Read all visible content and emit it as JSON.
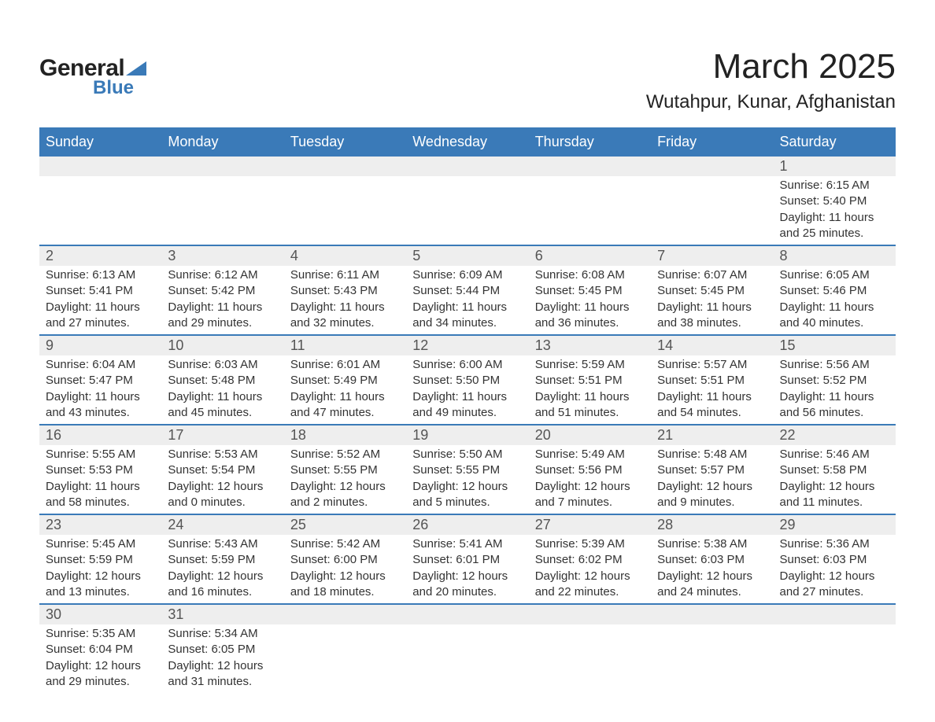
{
  "logo": {
    "text_general": "General",
    "text_blue": "Blue",
    "shape_color": "#3a7ab8"
  },
  "title": {
    "month_year": "March 2025",
    "location": "Wutahpur, Kunar, Afghanistan"
  },
  "colors": {
    "header_bg": "#3a7ab8",
    "header_fg": "#ffffff",
    "daynum_bg": "#eeeeee",
    "row_divider": "#3a7ab8",
    "text": "#333333"
  },
  "typography": {
    "title_fontsize": 44,
    "subtitle_fontsize": 24,
    "header_fontsize": 18,
    "daynum_fontsize": 18,
    "cell_fontsize": 15
  },
  "days_of_week": [
    "Sunday",
    "Monday",
    "Tuesday",
    "Wednesday",
    "Thursday",
    "Friday",
    "Saturday"
  ],
  "weeks": [
    [
      null,
      null,
      null,
      null,
      null,
      null,
      {
        "n": "1",
        "sunrise": "Sunrise: 6:15 AM",
        "sunset": "Sunset: 5:40 PM",
        "d1": "Daylight: 11 hours",
        "d2": "and 25 minutes."
      }
    ],
    [
      {
        "n": "2",
        "sunrise": "Sunrise: 6:13 AM",
        "sunset": "Sunset: 5:41 PM",
        "d1": "Daylight: 11 hours",
        "d2": "and 27 minutes."
      },
      {
        "n": "3",
        "sunrise": "Sunrise: 6:12 AM",
        "sunset": "Sunset: 5:42 PM",
        "d1": "Daylight: 11 hours",
        "d2": "and 29 minutes."
      },
      {
        "n": "4",
        "sunrise": "Sunrise: 6:11 AM",
        "sunset": "Sunset: 5:43 PM",
        "d1": "Daylight: 11 hours",
        "d2": "and 32 minutes."
      },
      {
        "n": "5",
        "sunrise": "Sunrise: 6:09 AM",
        "sunset": "Sunset: 5:44 PM",
        "d1": "Daylight: 11 hours",
        "d2": "and 34 minutes."
      },
      {
        "n": "6",
        "sunrise": "Sunrise: 6:08 AM",
        "sunset": "Sunset: 5:45 PM",
        "d1": "Daylight: 11 hours",
        "d2": "and 36 minutes."
      },
      {
        "n": "7",
        "sunrise": "Sunrise: 6:07 AM",
        "sunset": "Sunset: 5:45 PM",
        "d1": "Daylight: 11 hours",
        "d2": "and 38 minutes."
      },
      {
        "n": "8",
        "sunrise": "Sunrise: 6:05 AM",
        "sunset": "Sunset: 5:46 PM",
        "d1": "Daylight: 11 hours",
        "d2": "and 40 minutes."
      }
    ],
    [
      {
        "n": "9",
        "sunrise": "Sunrise: 6:04 AM",
        "sunset": "Sunset: 5:47 PM",
        "d1": "Daylight: 11 hours",
        "d2": "and 43 minutes."
      },
      {
        "n": "10",
        "sunrise": "Sunrise: 6:03 AM",
        "sunset": "Sunset: 5:48 PM",
        "d1": "Daylight: 11 hours",
        "d2": "and 45 minutes."
      },
      {
        "n": "11",
        "sunrise": "Sunrise: 6:01 AM",
        "sunset": "Sunset: 5:49 PM",
        "d1": "Daylight: 11 hours",
        "d2": "and 47 minutes."
      },
      {
        "n": "12",
        "sunrise": "Sunrise: 6:00 AM",
        "sunset": "Sunset: 5:50 PM",
        "d1": "Daylight: 11 hours",
        "d2": "and 49 minutes."
      },
      {
        "n": "13",
        "sunrise": "Sunrise: 5:59 AM",
        "sunset": "Sunset: 5:51 PM",
        "d1": "Daylight: 11 hours",
        "d2": "and 51 minutes."
      },
      {
        "n": "14",
        "sunrise": "Sunrise: 5:57 AM",
        "sunset": "Sunset: 5:51 PM",
        "d1": "Daylight: 11 hours",
        "d2": "and 54 minutes."
      },
      {
        "n": "15",
        "sunrise": "Sunrise: 5:56 AM",
        "sunset": "Sunset: 5:52 PM",
        "d1": "Daylight: 11 hours",
        "d2": "and 56 minutes."
      }
    ],
    [
      {
        "n": "16",
        "sunrise": "Sunrise: 5:55 AM",
        "sunset": "Sunset: 5:53 PM",
        "d1": "Daylight: 11 hours",
        "d2": "and 58 minutes."
      },
      {
        "n": "17",
        "sunrise": "Sunrise: 5:53 AM",
        "sunset": "Sunset: 5:54 PM",
        "d1": "Daylight: 12 hours",
        "d2": "and 0 minutes."
      },
      {
        "n": "18",
        "sunrise": "Sunrise: 5:52 AM",
        "sunset": "Sunset: 5:55 PM",
        "d1": "Daylight: 12 hours",
        "d2": "and 2 minutes."
      },
      {
        "n": "19",
        "sunrise": "Sunrise: 5:50 AM",
        "sunset": "Sunset: 5:55 PM",
        "d1": "Daylight: 12 hours",
        "d2": "and 5 minutes."
      },
      {
        "n": "20",
        "sunrise": "Sunrise: 5:49 AM",
        "sunset": "Sunset: 5:56 PM",
        "d1": "Daylight: 12 hours",
        "d2": "and 7 minutes."
      },
      {
        "n": "21",
        "sunrise": "Sunrise: 5:48 AM",
        "sunset": "Sunset: 5:57 PM",
        "d1": "Daylight: 12 hours",
        "d2": "and 9 minutes."
      },
      {
        "n": "22",
        "sunrise": "Sunrise: 5:46 AM",
        "sunset": "Sunset: 5:58 PM",
        "d1": "Daylight: 12 hours",
        "d2": "and 11 minutes."
      }
    ],
    [
      {
        "n": "23",
        "sunrise": "Sunrise: 5:45 AM",
        "sunset": "Sunset: 5:59 PM",
        "d1": "Daylight: 12 hours",
        "d2": "and 13 minutes."
      },
      {
        "n": "24",
        "sunrise": "Sunrise: 5:43 AM",
        "sunset": "Sunset: 5:59 PM",
        "d1": "Daylight: 12 hours",
        "d2": "and 16 minutes."
      },
      {
        "n": "25",
        "sunrise": "Sunrise: 5:42 AM",
        "sunset": "Sunset: 6:00 PM",
        "d1": "Daylight: 12 hours",
        "d2": "and 18 minutes."
      },
      {
        "n": "26",
        "sunrise": "Sunrise: 5:41 AM",
        "sunset": "Sunset: 6:01 PM",
        "d1": "Daylight: 12 hours",
        "d2": "and 20 minutes."
      },
      {
        "n": "27",
        "sunrise": "Sunrise: 5:39 AM",
        "sunset": "Sunset: 6:02 PM",
        "d1": "Daylight: 12 hours",
        "d2": "and 22 minutes."
      },
      {
        "n": "28",
        "sunrise": "Sunrise: 5:38 AM",
        "sunset": "Sunset: 6:03 PM",
        "d1": "Daylight: 12 hours",
        "d2": "and 24 minutes."
      },
      {
        "n": "29",
        "sunrise": "Sunrise: 5:36 AM",
        "sunset": "Sunset: 6:03 PM",
        "d1": "Daylight: 12 hours",
        "d2": "and 27 minutes."
      }
    ],
    [
      {
        "n": "30",
        "sunrise": "Sunrise: 5:35 AM",
        "sunset": "Sunset: 6:04 PM",
        "d1": "Daylight: 12 hours",
        "d2": "and 29 minutes."
      },
      {
        "n": "31",
        "sunrise": "Sunrise: 5:34 AM",
        "sunset": "Sunset: 6:05 PM",
        "d1": "Daylight: 12 hours",
        "d2": "and 31 minutes."
      },
      null,
      null,
      null,
      null,
      null
    ]
  ]
}
